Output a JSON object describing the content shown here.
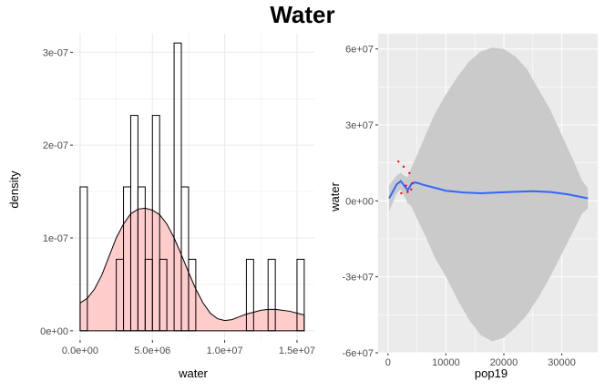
{
  "title": "Water",
  "colors": {
    "hist_fill": "#ffffff",
    "hist_stroke": "#000000",
    "density_fill": "#ffcccc",
    "density_stroke": "#000000",
    "grid_left": "#ebebeb",
    "panel_right": "#ebebeb",
    "grid_right": "#ffffff",
    "ribbon": "#c8c8c8",
    "smooth_line": "#3366ff",
    "points": "#ff0000"
  },
  "chart_data": [
    {
      "type": "bar",
      "subtype": "histogram_with_density",
      "xlabel": "water",
      "ylabel": "density",
      "xlim": [
        -500000,
        16200000
      ],
      "ylim": [
        -1e-08,
        3.2e-07
      ],
      "x_ticks": [
        0,
        5000000,
        10000000,
        15000000
      ],
      "x_tick_labels": [
        "0.0e+00",
        "5.0e+06",
        "1.0e+07",
        "1.5e+07"
      ],
      "y_ticks": [
        0,
        1e-07,
        2e-07,
        3e-07
      ],
      "y_tick_labels": [
        "0e+00",
        "1e-07",
        "2e-07",
        "3e-07"
      ],
      "grid": true,
      "bin_width": 500000,
      "bin_starts": [
        0,
        500000,
        1000000,
        1500000,
        2000000,
        2500000,
        3000000,
        3500000,
        4000000,
        4500000,
        5000000,
        5500000,
        6000000,
        6500000,
        7000000,
        7500000,
        8000000,
        8500000,
        9000000,
        9500000,
        10000000,
        10500000,
        11000000,
        11500000,
        12000000,
        12500000,
        13000000,
        13500000,
        14000000,
        14500000,
        15000000
      ],
      "values": [
        1.55e-07,
        0,
        0,
        0,
        0,
        7.7e-08,
        1.55e-07,
        2.32e-07,
        1.55e-07,
        7.7e-08,
        2.32e-07,
        7.7e-08,
        0,
        3.1e-07,
        1.55e-07,
        7.7e-08,
        0,
        0,
        0,
        0,
        0,
        0,
        0,
        7.7e-08,
        0,
        0,
        7.7e-08,
        0,
        0,
        0,
        7.7e-08
      ],
      "density_x": [
        0,
        500000,
        1000000,
        1500000,
        2000000,
        2500000,
        3000000,
        3500000,
        4000000,
        4500000,
        5000000,
        5500000,
        6000000,
        6500000,
        7000000,
        7500000,
        8000000,
        8500000,
        9000000,
        9500000,
        10000000,
        10500000,
        11000000,
        11500000,
        12000000,
        12500000,
        13000000,
        13500000,
        14000000,
        14500000,
        15000000,
        15500000
      ],
      "density_y": [
        3e-08,
        3.5e-08,
        4.5e-08,
        6e-08,
        8e-08,
        1e-07,
        1.15e-07,
        1.26e-07,
        1.31e-07,
        1.32e-07,
        1.3e-07,
        1.25e-07,
        1.15e-07,
        1e-07,
        8.2e-08,
        6.3e-08,
        4.5e-08,
        3e-08,
        1.9e-08,
        1.3e-08,
        1.1e-08,
        1.2e-08,
        1.5e-08,
        1.8e-08,
        2e-08,
        2.2e-08,
        2.3e-08,
        2.3e-08,
        2.2e-08,
        2.1e-08,
        1.9e-08,
        1.7e-08
      ]
    },
    {
      "type": "line",
      "subtype": "scatter_with_smooth",
      "xlabel": "pop19",
      "ylabel": "water",
      "xlim": [
        -1700,
        36200
      ],
      "ylim": [
        -60000000,
        66000000
      ],
      "x_ticks": [
        0,
        10000,
        20000,
        30000
      ],
      "x_tick_labels": [
        "0",
        "10000",
        "20000",
        "30000"
      ],
      "y_ticks": [
        -60000000,
        -30000000,
        0,
        30000000,
        60000000
      ],
      "y_tick_labels": [
        "-6e+07",
        "-3e+07",
        "0e+00",
        "3e+07",
        "6e+07"
      ],
      "grid": true,
      "points_x": [
        1800,
        2300,
        2700,
        3100,
        3400,
        3700,
        4000,
        4200
      ],
      "points_y": [
        15500000,
        3000000,
        13500000,
        6000000,
        3500000,
        11000000,
        4500000,
        7000000
      ],
      "smooth_x": [
        200,
        800,
        1500,
        2200,
        2800,
        3400,
        4000,
        4600,
        5200,
        6000,
        8000,
        10000,
        13000,
        16000,
        19000,
        22000,
        25000,
        28000,
        31000,
        33000,
        34500
      ],
      "smooth_y": [
        1000000,
        3500000,
        6500000,
        7800000,
        6000000,
        4200000,
        6500000,
        7300000,
        7000000,
        6400000,
        5200000,
        4000000,
        3300000,
        3000000,
        3300000,
        3600000,
        3800000,
        3500000,
        2600000,
        1700000,
        1000000
      ],
      "ribbon_x": [
        200,
        800,
        1500,
        2200,
        2800,
        3400,
        4000,
        5000,
        6500,
        8000,
        10000,
        12000,
        14000,
        16000,
        18000,
        20000,
        22000,
        24000,
        26000,
        28000,
        30000,
        32000,
        33500,
        34500
      ],
      "ribbon_upper": [
        6000000,
        8000000,
        10000000,
        11000000,
        10000000,
        9500000,
        13000000,
        18000000,
        26000000,
        34000000,
        42000000,
        49000000,
        55000000,
        59000000,
        60500000,
        60000000,
        57000000,
        52000000,
        44000000,
        36000000,
        26000000,
        16000000,
        8000000,
        5000000
      ],
      "ribbon_lower": [
        -4000000,
        -1000000,
        3000000,
        4500000,
        2000000,
        -1000000,
        -2000000,
        -7000000,
        -14000000,
        -22000000,
        -30000000,
        -39000000,
        -47000000,
        -53000000,
        -55500000,
        -54000000,
        -50000000,
        -45000000,
        -38000000,
        -30000000,
        -21000000,
        -12000000,
        -5000000,
        -3000000
      ]
    }
  ]
}
